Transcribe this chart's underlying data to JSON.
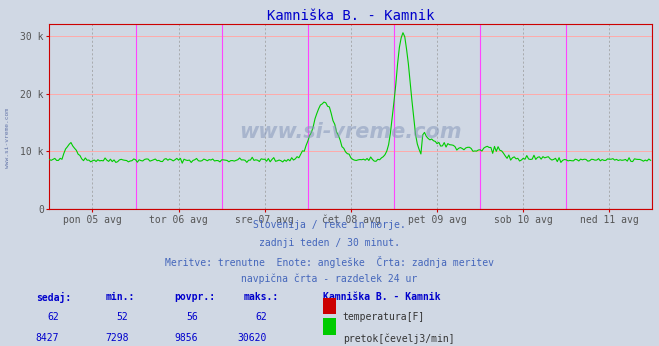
{
  "title": "Kamniška B. - Kamnik",
  "title_color": "#0000cc",
  "bg_color": "#d0d8e4",
  "plot_bg_color": "#d0d8e4",
  "grid_color_h": "#ffaaaa",
  "grid_color_v_pink": "#ff44ff",
  "grid_color_v_gray": "#999999",
  "x_labels": [
    "pon 05 avg",
    "tor 06 avg",
    "sre 07 avg",
    "čet 08 avg",
    "pet 09 avg",
    "sob 10 avg",
    "ned 11 avg"
  ],
  "y_ticks": [
    0,
    10000,
    20000,
    30000
  ],
  "y_tick_labels": [
    "0",
    "10 k",
    "20 k",
    "30 k"
  ],
  "ylim": [
    0,
    32000
  ],
  "xlim": [
    0,
    336
  ],
  "subtitle_lines": [
    "Slovenija / reke in morje.",
    "zadnji teden / 30 minut.",
    "Meritve: trenutne  Enote: angleške  Črta: zadnja meritev",
    "navpična črta - razdelek 24 ur"
  ],
  "subtitle_color": "#4466bb",
  "table_headers": [
    "sedaj:",
    "min.:",
    "povpr.:",
    "maks.:",
    "Kamniška B. - Kamnik"
  ],
  "table_row1": [
    "62",
    "52",
    "56",
    "62"
  ],
  "table_row2": [
    "8427",
    "7298",
    "9856",
    "30620"
  ],
  "table_color": "#0000cc",
  "legend_label1": "temperatura[F]",
  "legend_label2": "pretok[čevelj3/min]",
  "legend_color1": "#cc0000",
  "legend_color2": "#00cc00",
  "flow_avg": 8500,
  "flow_max": 30620,
  "n_points": 336
}
